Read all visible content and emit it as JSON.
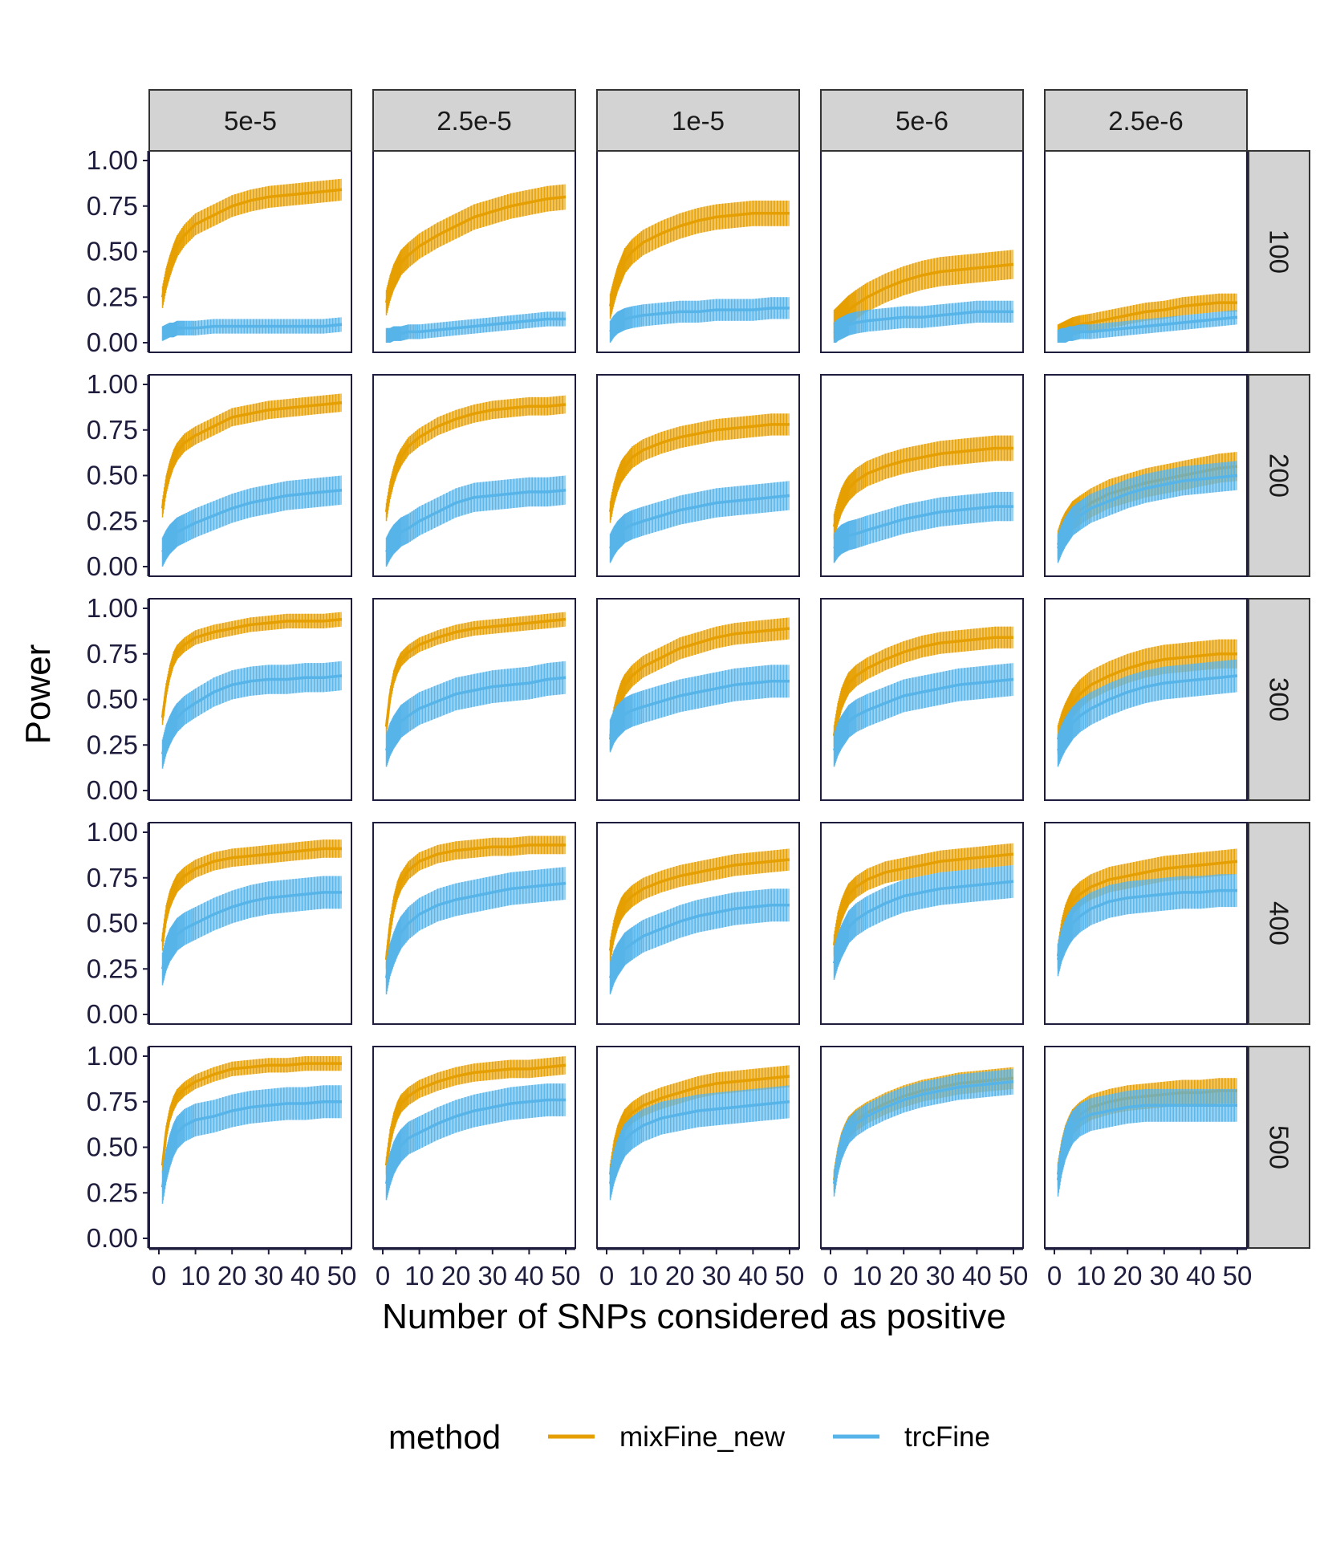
{
  "chart_data": {
    "type": "line",
    "xlabel": "Number of SNPs considered as positive",
    "ylabel": "Power",
    "xlim": [
      0,
      50
    ],
    "ylim": [
      0,
      1
    ],
    "x_ticks": [
      0,
      10,
      20,
      30,
      40,
      50
    ],
    "x_tick_labels": [
      "0",
      "10",
      "20",
      "30",
      "40",
      "50"
    ],
    "y_ticks": [
      0,
      0.25,
      0.5,
      0.75,
      1.0
    ],
    "y_tick_labels": [
      "0.00",
      "0.25",
      "0.50",
      "0.75",
      "1.00"
    ],
    "column_facets": [
      "5e-5",
      "2.5e-5",
      "1e-5",
      "5e-6",
      "2.5e-6"
    ],
    "row_facets": [
      "100",
      "200",
      "300",
      "400",
      "500"
    ],
    "legend": {
      "title": "method",
      "position": "bottom",
      "entries": [
        {
          "name": "mixFine_new",
          "color": "#E69F00"
        },
        {
          "name": "trcFine",
          "color": "#56B4E9"
        }
      ]
    },
    "x": [
      1,
      2,
      3,
      4,
      5,
      7,
      10,
      15,
      20,
      25,
      30,
      35,
      40,
      45,
      50
    ],
    "panels": [
      {
        "row": "100",
        "col": "5e-5",
        "mixFine_new": [
          0.25,
          0.35,
          0.42,
          0.48,
          0.53,
          0.59,
          0.65,
          0.7,
          0.75,
          0.78,
          0.8,
          0.81,
          0.82,
          0.83,
          0.84
        ],
        "mixFine_new_band": 0.06,
        "trcFine": [
          0.05,
          0.06,
          0.07,
          0.07,
          0.08,
          0.08,
          0.08,
          0.09,
          0.09,
          0.09,
          0.09,
          0.09,
          0.09,
          0.09,
          0.1
        ],
        "trcFine_band": 0.04
      },
      {
        "row": "100",
        "col": "2.5e-5",
        "mixFine_new": [
          0.22,
          0.3,
          0.36,
          0.4,
          0.44,
          0.48,
          0.53,
          0.59,
          0.64,
          0.69,
          0.72,
          0.75,
          0.77,
          0.79,
          0.8
        ],
        "mixFine_new_band": 0.07,
        "trcFine": [
          0.04,
          0.04,
          0.05,
          0.05,
          0.05,
          0.06,
          0.06,
          0.07,
          0.08,
          0.09,
          0.1,
          0.11,
          0.12,
          0.13,
          0.13
        ],
        "trcFine_band": 0.04
      },
      {
        "row": "100",
        "col": "1e-5",
        "mixFine_new": [
          0.2,
          0.28,
          0.35,
          0.4,
          0.45,
          0.5,
          0.55,
          0.6,
          0.64,
          0.67,
          0.69,
          0.7,
          0.71,
          0.71,
          0.71
        ],
        "mixFine_new_band": 0.07,
        "trcFine": [
          0.06,
          0.09,
          0.11,
          0.12,
          0.13,
          0.14,
          0.15,
          0.16,
          0.17,
          0.17,
          0.18,
          0.18,
          0.18,
          0.19,
          0.19
        ],
        "trcFine_band": 0.06
      },
      {
        "row": "100",
        "col": "5e-6",
        "mixFine_new": [
          0.1,
          0.12,
          0.14,
          0.16,
          0.18,
          0.21,
          0.25,
          0.3,
          0.34,
          0.37,
          0.39,
          0.4,
          0.41,
          0.42,
          0.43
        ],
        "mixFine_new_band": 0.08,
        "trcFine": [
          0.05,
          0.07,
          0.08,
          0.09,
          0.1,
          0.11,
          0.12,
          0.13,
          0.14,
          0.14,
          0.15,
          0.16,
          0.17,
          0.17,
          0.17
        ],
        "trcFine_band": 0.06
      },
      {
        "row": "100",
        "col": "2.5e-6",
        "mixFine_new": [
          0.05,
          0.06,
          0.07,
          0.08,
          0.09,
          0.1,
          0.11,
          0.13,
          0.15,
          0.17,
          0.18,
          0.2,
          0.21,
          0.22,
          0.22
        ],
        "mixFine_new_band": 0.05,
        "trcFine": [
          0.03,
          0.04,
          0.04,
          0.05,
          0.05,
          0.06,
          0.06,
          0.07,
          0.08,
          0.09,
          0.1,
          0.11,
          0.12,
          0.13,
          0.14
        ],
        "trcFine_band": 0.04
      },
      {
        "row": "200",
        "col": "5e-5",
        "mixFine_new": [
          0.32,
          0.45,
          0.53,
          0.59,
          0.63,
          0.68,
          0.72,
          0.77,
          0.82,
          0.84,
          0.86,
          0.87,
          0.88,
          0.89,
          0.9
        ],
        "mixFine_new_band": 0.05,
        "trcFine": [
          0.08,
          0.12,
          0.15,
          0.17,
          0.19,
          0.21,
          0.24,
          0.28,
          0.32,
          0.35,
          0.37,
          0.39,
          0.4,
          0.41,
          0.42
        ],
        "trcFine_band": 0.08
      },
      {
        "row": "200",
        "col": "2.5e-5",
        "mixFine_new": [
          0.3,
          0.42,
          0.5,
          0.56,
          0.6,
          0.66,
          0.71,
          0.77,
          0.81,
          0.84,
          0.86,
          0.87,
          0.88,
          0.88,
          0.89
        ],
        "mixFine_new_band": 0.05,
        "trcFine": [
          0.08,
          0.12,
          0.15,
          0.17,
          0.19,
          0.21,
          0.25,
          0.3,
          0.35,
          0.38,
          0.39,
          0.4,
          0.41,
          0.41,
          0.42
        ],
        "trcFine_band": 0.08
      },
      {
        "row": "200",
        "col": "1e-5",
        "mixFine_new": [
          0.3,
          0.4,
          0.47,
          0.52,
          0.55,
          0.6,
          0.64,
          0.68,
          0.71,
          0.73,
          0.75,
          0.76,
          0.77,
          0.78,
          0.78
        ],
        "mixFine_new_band": 0.06,
        "trcFine": [
          0.1,
          0.14,
          0.17,
          0.19,
          0.21,
          0.23,
          0.25,
          0.28,
          0.31,
          0.33,
          0.35,
          0.36,
          0.37,
          0.38,
          0.39
        ],
        "trcFine_band": 0.08
      },
      {
        "row": "200",
        "col": "5e-6",
        "mixFine_new": [
          0.22,
          0.3,
          0.36,
          0.4,
          0.43,
          0.47,
          0.51,
          0.55,
          0.58,
          0.6,
          0.62,
          0.63,
          0.64,
          0.65,
          0.65
        ],
        "mixFine_new_band": 0.07,
        "trcFine": [
          0.1,
          0.13,
          0.15,
          0.16,
          0.17,
          0.18,
          0.2,
          0.23,
          0.26,
          0.28,
          0.3,
          0.31,
          0.32,
          0.33,
          0.33
        ],
        "trcFine_band": 0.08
      },
      {
        "row": "200",
        "col": "2.5e-6",
        "mixFine_new": [
          0.12,
          0.18,
          0.22,
          0.25,
          0.28,
          0.31,
          0.35,
          0.4,
          0.43,
          0.46,
          0.48,
          0.5,
          0.52,
          0.54,
          0.55
        ],
        "mixFine_new_band": 0.08,
        "trcFine": [
          0.1,
          0.15,
          0.19,
          0.22,
          0.25,
          0.28,
          0.32,
          0.36,
          0.4,
          0.43,
          0.45,
          0.47,
          0.48,
          0.49,
          0.5
        ],
        "trcFine_band": 0.08
      },
      {
        "row": "300",
        "col": "5e-5",
        "mixFine_new": [
          0.4,
          0.55,
          0.65,
          0.72,
          0.76,
          0.8,
          0.84,
          0.87,
          0.89,
          0.91,
          0.92,
          0.93,
          0.93,
          0.93,
          0.94
        ],
        "mixFine_new_band": 0.04,
        "trcFine": [
          0.2,
          0.28,
          0.33,
          0.37,
          0.4,
          0.44,
          0.48,
          0.54,
          0.58,
          0.6,
          0.61,
          0.61,
          0.62,
          0.62,
          0.63
        ],
        "trcFine_band": 0.08
      },
      {
        "row": "300",
        "col": "2.5e-5",
        "mixFine_new": [
          0.35,
          0.52,
          0.62,
          0.68,
          0.72,
          0.76,
          0.8,
          0.84,
          0.87,
          0.89,
          0.9,
          0.91,
          0.92,
          0.93,
          0.94
        ],
        "mixFine_new_band": 0.04,
        "trcFine": [
          0.22,
          0.28,
          0.32,
          0.35,
          0.38,
          0.41,
          0.45,
          0.49,
          0.53,
          0.55,
          0.57,
          0.58,
          0.59,
          0.61,
          0.62
        ],
        "trcFine_band": 0.09
      },
      {
        "row": "300",
        "col": "1e-5",
        "mixFine_new": [
          0.28,
          0.4,
          0.48,
          0.54,
          0.58,
          0.63,
          0.68,
          0.73,
          0.78,
          0.81,
          0.84,
          0.86,
          0.87,
          0.88,
          0.89
        ],
        "mixFine_new_band": 0.06,
        "trcFine": [
          0.3,
          0.35,
          0.38,
          0.4,
          0.42,
          0.44,
          0.46,
          0.49,
          0.52,
          0.54,
          0.56,
          0.58,
          0.59,
          0.6,
          0.6
        ],
        "trcFine_band": 0.09
      },
      {
        "row": "300",
        "col": "5e-6",
        "mixFine_new": [
          0.3,
          0.42,
          0.5,
          0.55,
          0.59,
          0.63,
          0.67,
          0.72,
          0.76,
          0.79,
          0.81,
          0.82,
          0.83,
          0.84,
          0.84
        ],
        "mixFine_new_band": 0.06,
        "trcFine": [
          0.22,
          0.28,
          0.32,
          0.35,
          0.38,
          0.41,
          0.44,
          0.48,
          0.52,
          0.54,
          0.56,
          0.58,
          0.59,
          0.6,
          0.61
        ],
        "trcFine_band": 0.09
      },
      {
        "row": "300",
        "col": "2.5e-6",
        "mixFine_new": [
          0.28,
          0.35,
          0.4,
          0.44,
          0.48,
          0.53,
          0.58,
          0.63,
          0.67,
          0.7,
          0.72,
          0.73,
          0.74,
          0.75,
          0.75
        ],
        "mixFine_new_band": 0.08,
        "trcFine": [
          0.22,
          0.27,
          0.31,
          0.34,
          0.37,
          0.41,
          0.45,
          0.5,
          0.54,
          0.57,
          0.59,
          0.6,
          0.61,
          0.62,
          0.63
        ],
        "trcFine_band": 0.09
      },
      {
        "row": "400",
        "col": "5e-5",
        "mixFine_new": [
          0.4,
          0.55,
          0.63,
          0.68,
          0.72,
          0.76,
          0.8,
          0.84,
          0.86,
          0.87,
          0.88,
          0.89,
          0.9,
          0.91,
          0.91
        ],
        "mixFine_new_band": 0.05,
        "trcFine": [
          0.25,
          0.33,
          0.38,
          0.41,
          0.44,
          0.47,
          0.5,
          0.55,
          0.59,
          0.62,
          0.64,
          0.65,
          0.66,
          0.67,
          0.67
        ],
        "trcFine_band": 0.09
      },
      {
        "row": "400",
        "col": "2.5e-5",
        "mixFine_new": [
          0.3,
          0.48,
          0.6,
          0.68,
          0.73,
          0.79,
          0.84,
          0.88,
          0.9,
          0.91,
          0.92,
          0.92,
          0.93,
          0.93,
          0.93
        ],
        "mixFine_new_band": 0.05,
        "trcFine": [
          0.2,
          0.3,
          0.36,
          0.41,
          0.45,
          0.5,
          0.55,
          0.6,
          0.63,
          0.65,
          0.67,
          0.69,
          0.7,
          0.71,
          0.72
        ],
        "trcFine_band": 0.09
      },
      {
        "row": "400",
        "col": "1e-5",
        "mixFine_new": [
          0.35,
          0.46,
          0.53,
          0.58,
          0.61,
          0.65,
          0.69,
          0.73,
          0.76,
          0.78,
          0.8,
          0.82,
          0.83,
          0.84,
          0.85
        ],
        "mixFine_new_band": 0.06,
        "trcFine": [
          0.2,
          0.26,
          0.3,
          0.33,
          0.36,
          0.39,
          0.43,
          0.47,
          0.51,
          0.54,
          0.56,
          0.58,
          0.59,
          0.6,
          0.6
        ],
        "trcFine_band": 0.09
      },
      {
        "row": "400",
        "col": "5e-6",
        "mixFine_new": [
          0.38,
          0.5,
          0.57,
          0.62,
          0.66,
          0.7,
          0.74,
          0.78,
          0.8,
          0.82,
          0.84,
          0.85,
          0.86,
          0.87,
          0.88
        ],
        "mixFine_new_band": 0.06,
        "trcFine": [
          0.28,
          0.35,
          0.4,
          0.44,
          0.48,
          0.52,
          0.56,
          0.61,
          0.65,
          0.67,
          0.69,
          0.7,
          0.71,
          0.72,
          0.73
        ],
        "trcFine_band": 0.09
      },
      {
        "row": "400",
        "col": "2.5e-6",
        "mixFine_new": [
          0.32,
          0.45,
          0.53,
          0.58,
          0.62,
          0.66,
          0.7,
          0.74,
          0.76,
          0.78,
          0.8,
          0.81,
          0.82,
          0.83,
          0.84
        ],
        "mixFine_new_band": 0.07,
        "trcFine": [
          0.3,
          0.38,
          0.43,
          0.47,
          0.5,
          0.54,
          0.58,
          0.62,
          0.64,
          0.65,
          0.66,
          0.67,
          0.67,
          0.68,
          0.68
        ],
        "trcFine_band": 0.09
      },
      {
        "row": "500",
        "col": "5e-5",
        "mixFine_new": [
          0.4,
          0.58,
          0.68,
          0.74,
          0.78,
          0.82,
          0.86,
          0.9,
          0.93,
          0.94,
          0.95,
          0.95,
          0.96,
          0.96,
          0.96
        ],
        "mixFine_new_band": 0.04,
        "trcFine": [
          0.28,
          0.4,
          0.48,
          0.54,
          0.58,
          0.62,
          0.65,
          0.67,
          0.7,
          0.72,
          0.73,
          0.74,
          0.74,
          0.75,
          0.75
        ],
        "trcFine_band": 0.09
      },
      {
        "row": "500",
        "col": "2.5e-5",
        "mixFine_new": [
          0.4,
          0.55,
          0.64,
          0.7,
          0.74,
          0.78,
          0.82,
          0.86,
          0.89,
          0.91,
          0.92,
          0.93,
          0.93,
          0.94,
          0.95
        ],
        "mixFine_new_band": 0.05,
        "trcFine": [
          0.3,
          0.38,
          0.44,
          0.48,
          0.51,
          0.55,
          0.58,
          0.63,
          0.67,
          0.7,
          0.72,
          0.74,
          0.75,
          0.76,
          0.76
        ],
        "trcFine_band": 0.09
      },
      {
        "row": "500",
        "col": "1e-5",
        "mixFine_new": [
          0.35,
          0.48,
          0.56,
          0.61,
          0.65,
          0.69,
          0.73,
          0.77,
          0.8,
          0.83,
          0.85,
          0.86,
          0.87,
          0.88,
          0.89
        ],
        "mixFine_new_band": 0.06,
        "trcFine": [
          0.3,
          0.39,
          0.45,
          0.5,
          0.54,
          0.58,
          0.62,
          0.66,
          0.68,
          0.7,
          0.71,
          0.72,
          0.73,
          0.74,
          0.75
        ],
        "trcFine_band": 0.09
      },
      {
        "row": "500",
        "col": "5e-6",
        "mixFine_new": [
          0.32,
          0.44,
          0.52,
          0.57,
          0.61,
          0.65,
          0.69,
          0.74,
          0.78,
          0.81,
          0.83,
          0.85,
          0.86,
          0.87,
          0.88
        ],
        "mixFine_new_band": 0.06,
        "trcFine": [
          0.3,
          0.42,
          0.5,
          0.55,
          0.59,
          0.63,
          0.67,
          0.72,
          0.76,
          0.79,
          0.81,
          0.83,
          0.84,
          0.85,
          0.86
        ],
        "trcFine_band": 0.07
      },
      {
        "row": "500",
        "col": "2.5e-6",
        "mixFine_new": [
          0.35,
          0.47,
          0.55,
          0.6,
          0.64,
          0.68,
          0.72,
          0.75,
          0.77,
          0.78,
          0.79,
          0.8,
          0.8,
          0.81,
          0.81
        ],
        "mixFine_new_band": 0.07,
        "trcFine": [
          0.32,
          0.44,
          0.52,
          0.57,
          0.61,
          0.65,
          0.68,
          0.7,
          0.72,
          0.73,
          0.73,
          0.73,
          0.73,
          0.73,
          0.73
        ],
        "trcFine_band": 0.09
      }
    ]
  }
}
